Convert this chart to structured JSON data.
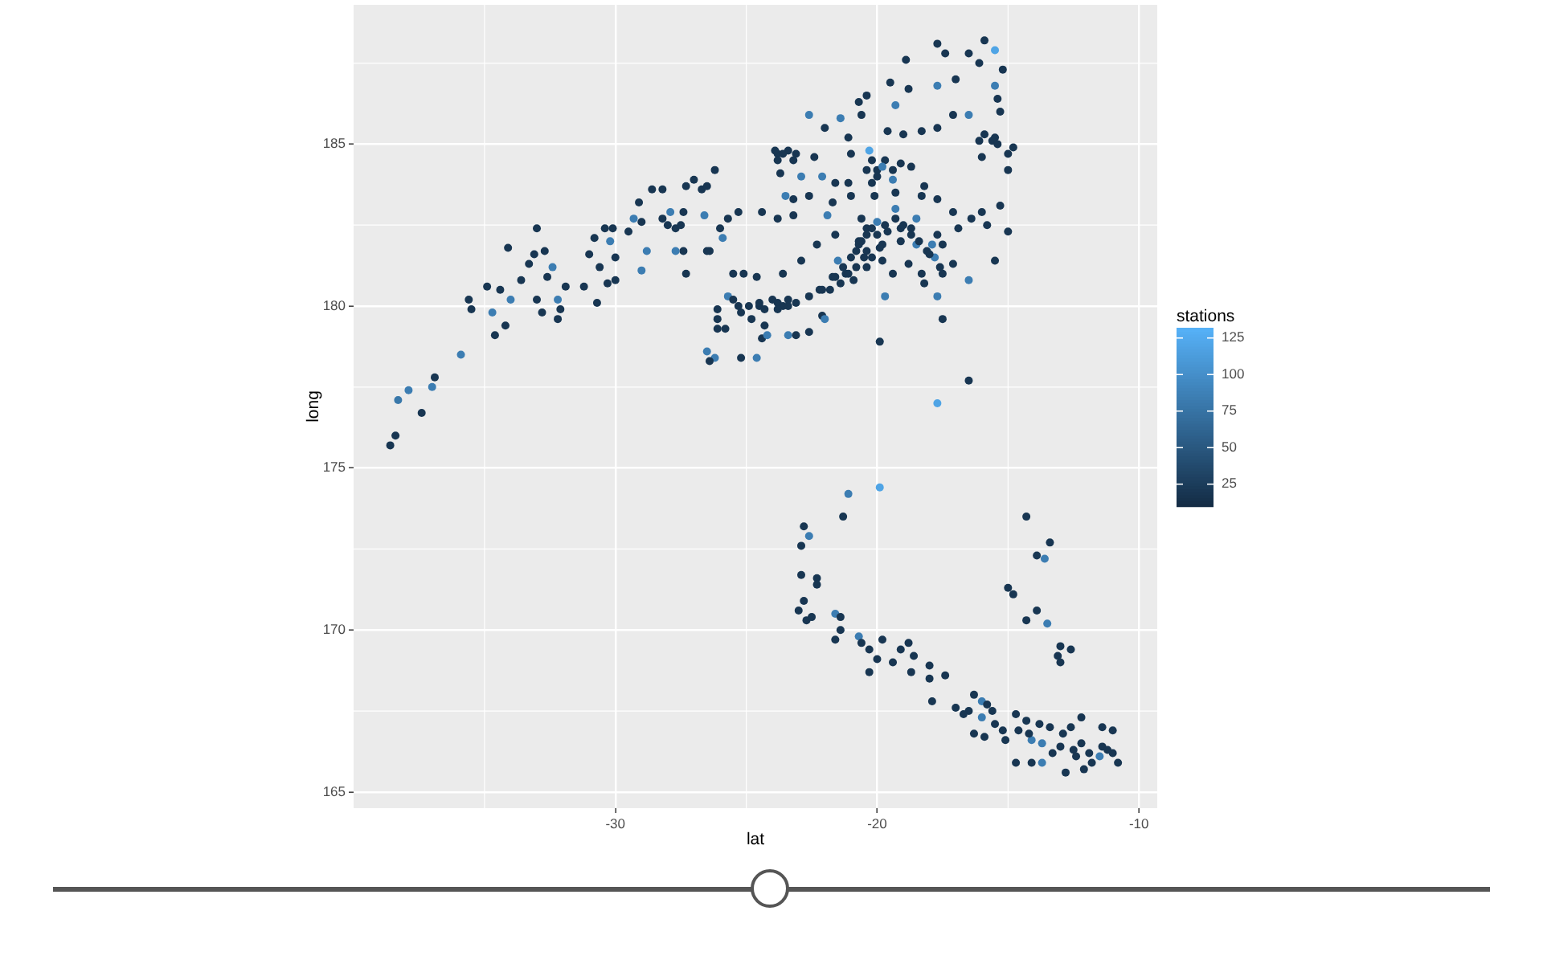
{
  "chart_data": {
    "type": "scatter",
    "xlabel": "lat",
    "ylabel": "long",
    "clabel": "stations",
    "x": [
      -38.6,
      -38.4,
      -38.3,
      -37.9,
      -37.4,
      -37.0,
      -36.9,
      -35.9,
      -35.6,
      -35.5,
      -34.9,
      -34.7,
      -34.6,
      -34.4,
      -34.2,
      -34.0,
      -34.1,
      -33.6,
      -33.3,
      -33.1,
      -33.0,
      -32.7,
      -32.6,
      -32.4,
      -33.0,
      -32.8,
      -32.2,
      -32.1,
      -32.2,
      -31.9,
      -31.2,
      -31.0,
      -30.7,
      -30.8,
      -30.4,
      -30.6,
      -30.2,
      -30.3,
      -30.0,
      -30.1,
      -30.0,
      -29.5,
      -29.3,
      -29.1,
      -29.0,
      -29.0,
      -28.8,
      -28.6,
      -28.2,
      -28.2,
      -27.9,
      -27.7,
      -27.5,
      -27.4,
      -27.3,
      -27.3,
      -27.0,
      -26.7,
      -26.6,
      -26.4,
      -26.2,
      -26.5,
      -26.2,
      -26.1,
      -26.1,
      -27.7,
      -27.4,
      -28.0,
      -26.4,
      -17.7,
      -17.4,
      -16.5,
      -15.9,
      -15.5,
      -18.9,
      -16.1,
      -15.2,
      -17.7,
      -17.0,
      -15.5,
      -15.4,
      -15.3,
      -19.5,
      -18.8,
      -20.4,
      -19.3,
      -20.7,
      -22.6,
      -21.4,
      -20.6,
      -17.1,
      -16.5,
      -17.7,
      -15.9,
      -15.5,
      -14.8,
      -15.0,
      -16.0,
      -15.0,
      -22.0,
      -21.1,
      -20.3,
      -19.6,
      -19.0,
      -18.3,
      -23.8,
      -23.4,
      -23.2,
      -22.4,
      -21.0,
      -20.0,
      -19.7,
      -18.7,
      -23.7,
      -22.9,
      -22.1,
      -21.6,
      -21.1,
      -20.2,
      -19.4,
      -19.3,
      -18.2,
      -17.7,
      -15.3,
      -22.6,
      -21.7,
      -23.2,
      -23.5,
      -21.0,
      -20.1,
      -18.3,
      -26.5,
      -25.3,
      -25.7,
      -24.4,
      -23.8,
      -23.2,
      -21.9,
      -20.6,
      -19.3,
      -18.5,
      -17.1,
      -16.4,
      -16.0,
      -15.8,
      -15.0,
      -26.0,
      -25.9,
      -26.5,
      -20.4,
      -20.0,
      -19.1,
      -18.7,
      -17.7,
      -16.9,
      -21.6,
      -22.3,
      -20.8,
      -20.2,
      -19.8,
      -18.5,
      -18.1,
      -17.5,
      -17.8,
      -17.5,
      -17.1,
      -15.5,
      -16.5,
      -21.5,
      -21.2,
      -21.7,
      -20.4,
      -19.8,
      -19.4,
      -19.7,
      -18.3,
      -18.2,
      -17.7,
      -18.8,
      -22.2,
      -22.6,
      -22.9,
      -25.5,
      -25.1,
      -24.6,
      -23.6,
      -25.7,
      -25.3,
      -24.5,
      -23.8,
      -23.4,
      -23.1,
      -26.1,
      -25.8,
      -24.8,
      -24.3,
      -24.4,
      -24.2,
      -23.4,
      -23.1,
      -22.6,
      -22.1,
      -22.0,
      -25.2,
      -24.6,
      -19.9,
      -17.5,
      -16.5,
      -17.7,
      -20.7,
      -19.6,
      -19.9,
      -21.0,
      -19.1,
      -19.9,
      -21.1,
      -21.3,
      -22.8,
      -22.6,
      -22.9,
      -22.9,
      -22.3,
      -22.3,
      -22.8,
      -23.0,
      -22.7,
      -22.5,
      -21.6,
      -21.4,
      -21.4,
      -21.6,
      -20.7,
      -20.6,
      -20.3,
      -20.0,
      -20.3,
      -19.8,
      -19.4,
      -19.1,
      -18.8,
      -18.6,
      -18.7,
      -18.0,
      -18.0,
      -17.4,
      -17.9,
      -17.0,
      -16.3,
      -16.0,
      -16.5,
      -16.3,
      -16.0,
      -15.6,
      -15.5,
      -15.9,
      -15.1,
      -14.7,
      -14.6,
      -14.3,
      -14.7,
      -14.1,
      -14.1,
      -13.8,
      -13.7,
      -13.7,
      -13.4,
      -13.3,
      -12.8,
      -12.9,
      -12.6,
      -12.5,
      -12.2,
      -12.2,
      -12.1,
      -11.9,
      -11.8,
      -11.5,
      -11.4,
      -11.4,
      -11.0,
      -11.0,
      -10.8,
      -14.3,
      -13.4,
      -13.9,
      -13.6,
      -15.0,
      -14.8,
      -14.3,
      -13.9,
      -13.5,
      -13.0,
      -12.6,
      -13.1,
      -13.0,
      -22.1,
      -21.6,
      -21.3,
      -20.7,
      -20.4,
      -20.2,
      -20.0,
      -19.7,
      -19.3,
      -19.0,
      -18.7,
      -18.4,
      -18.0,
      -17.6,
      -17.9,
      -21.1,
      -20.8,
      -20.5,
      -21.4,
      -21.8,
      -20.6,
      -20.4,
      -20.9,
      -20.2,
      -19.8,
      -19.4,
      -20.0,
      -19.1,
      -20.4,
      -23.9,
      -23.6,
      -23.1,
      -23.8,
      -25.5,
      -24.9,
      -24.5,
      -24.0,
      -23.6,
      -23.8,
      -25.2,
      -24.3,
      -23.4,
      -15.6,
      -16.1,
      -15.4,
      -15.2,
      -14.2,
      -13.0,
      -12.4,
      -11.2,
      -16.7,
      -15.8
    ],
    "values": [
      175.7,
      176.0,
      177.1,
      177.4,
      176.7,
      177.5,
      177.8,
      178.5,
      180.2,
      179.9,
      180.6,
      179.8,
      179.1,
      180.5,
      179.4,
      180.2,
      181.8,
      180.8,
      181.3,
      181.6,
      182.4,
      181.7,
      180.9,
      181.2,
      180.2,
      179.8,
      180.2,
      179.9,
      179.6,
      180.6,
      180.6,
      181.6,
      180.1,
      182.1,
      182.4,
      181.2,
      182.0,
      180.7,
      180.8,
      182.4,
      181.5,
      182.3,
      182.7,
      183.2,
      182.6,
      181.1,
      181.7,
      183.6,
      182.7,
      183.6,
      182.9,
      182.4,
      182.5,
      181.7,
      181.0,
      183.7,
      183.9,
      183.6,
      182.8,
      181.7,
      184.2,
      178.6,
      178.4,
      179.3,
      179.9,
      181.7,
      182.9,
      182.5,
      178.3,
      188.1,
      187.8,
      187.8,
      188.2,
      187.9,
      187.6,
      187.5,
      187.3,
      186.8,
      187.0,
      186.8,
      186.4,
      186.0,
      186.9,
      186.7,
      186.5,
      186.2,
      186.3,
      185.9,
      185.8,
      185.9,
      185.9,
      185.9,
      185.5,
      185.3,
      185.2,
      184.9,
      184.7,
      184.6,
      184.2,
      185.5,
      185.2,
      184.8,
      185.4,
      185.3,
      185.4,
      184.7,
      184.8,
      184.5,
      184.6,
      184.7,
      184.2,
      184.5,
      184.3,
      184.1,
      184.0,
      184.0,
      183.8,
      183.8,
      183.8,
      183.9,
      183.5,
      183.7,
      183.3,
      183.1,
      183.4,
      183.2,
      183.3,
      183.4,
      183.4,
      183.4,
      183.4,
      183.7,
      182.9,
      182.7,
      182.9,
      182.7,
      182.8,
      182.8,
      182.7,
      183.0,
      182.7,
      182.9,
      182.7,
      182.9,
      182.5,
      182.3,
      182.4,
      182.1,
      181.7,
      182.4,
      182.2,
      182.4,
      182.2,
      182.2,
      182.4,
      182.2,
      181.9,
      181.7,
      181.5,
      181.9,
      181.9,
      181.7,
      181.9,
      181.5,
      181.0,
      181.3,
      181.4,
      180.8,
      181.4,
      181.0,
      180.9,
      181.2,
      181.4,
      181.0,
      180.3,
      181.0,
      180.7,
      180.3,
      181.3,
      180.5,
      180.3,
      181.4,
      181.0,
      181.0,
      180.9,
      181.0,
      180.3,
      180.0,
      180.0,
      180.1,
      180.0,
      180.1,
      179.6,
      179.3,
      179.6,
      179.4,
      179.0,
      179.1,
      179.1,
      179.1,
      179.2,
      179.7,
      179.6,
      178.4,
      178.4,
      178.9,
      179.6,
      177.7,
      177.0,
      182.0,
      182.3,
      181.8,
      181.5,
      182.0,
      174.4,
      174.2,
      173.5,
      173.2,
      172.9,
      172.6,
      171.7,
      171.6,
      171.4,
      170.9,
      170.6,
      170.3,
      170.4,
      170.5,
      170.4,
      170.0,
      169.7,
      169.8,
      169.6,
      169.4,
      169.1,
      168.7,
      169.7,
      169.0,
      169.4,
      169.6,
      169.2,
      168.7,
      168.9,
      168.5,
      168.6,
      167.8,
      167.6,
      168.0,
      167.8,
      167.5,
      166.8,
      167.3,
      167.5,
      167.1,
      166.7,
      166.6,
      167.4,
      166.9,
      167.2,
      165.9,
      165.9,
      166.6,
      167.1,
      166.5,
      165.9,
      167.0,
      166.2,
      165.6,
      166.8,
      167.0,
      166.3,
      167.3,
      166.5,
      165.7,
      166.2,
      165.9,
      166.1,
      167.0,
      166.4,
      166.9,
      166.2,
      165.9,
      173.5,
      172.7,
      172.3,
      172.2,
      171.3,
      171.1,
      170.3,
      170.6,
      170.2,
      169.5,
      169.4,
      169.2,
      169.0,
      180.5,
      180.9,
      181.2,
      181.9,
      182.2,
      182.4,
      182.6,
      182.5,
      182.7,
      182.5,
      182.4,
      182.0,
      181.6,
      181.2,
      181.9,
      181.0,
      181.2,
      181.5,
      180.7,
      180.5,
      182.0,
      181.7,
      180.8,
      184.5,
      184.3,
      184.2,
      184.0,
      184.4,
      184.2,
      184.8,
      184.7,
      184.7,
      184.5,
      180.2,
      180.0,
      180.1,
      180.2,
      180.0,
      179.9,
      179.8,
      179.9,
      180.2,
      185.1,
      185.1,
      185.0,
      166.9,
      166.8,
      166.4,
      166.1,
      166.3,
      167.4,
      167.7
    ],
    "cvalues": [
      20,
      20,
      80,
      85,
      20,
      85,
      20,
      85,
      20,
      20,
      20,
      85,
      20,
      20,
      20,
      85,
      20,
      20,
      20,
      20,
      20,
      20,
      20,
      85,
      20,
      20,
      85,
      20,
      20,
      20,
      20,
      20,
      20,
      20,
      20,
      20,
      85,
      20,
      20,
      20,
      20,
      20,
      85,
      20,
      20,
      85,
      85,
      20,
      20,
      20,
      85,
      20,
      20,
      20,
      20,
      20,
      20,
      20,
      85,
      20,
      20,
      85,
      85,
      20,
      20,
      85,
      20,
      20,
      20,
      20,
      20,
      20,
      20,
      120,
      20,
      20,
      20,
      85,
      20,
      85,
      20,
      20,
      20,
      20,
      20,
      85,
      20,
      85,
      85,
      20,
      20,
      85,
      20,
      20,
      20,
      20,
      20,
      20,
      20,
      20,
      20,
      120,
      20,
      20,
      20,
      20,
      20,
      20,
      20,
      20,
      20,
      20,
      20,
      20,
      85,
      85,
      20,
      20,
      20,
      85,
      20,
      20,
      20,
      20,
      20,
      20,
      20,
      85,
      20,
      20,
      20,
      20,
      20,
      20,
      20,
      20,
      20,
      85,
      20,
      85,
      85,
      20,
      20,
      20,
      20,
      20,
      20,
      85,
      20,
      20,
      20,
      20,
      20,
      20,
      20,
      20,
      20,
      20,
      20,
      20,
      85,
      20,
      20,
      85,
      20,
      20,
      20,
      85,
      85,
      20,
      20,
      20,
      20,
      20,
      85,
      20,
      20,
      85,
      20,
      20,
      20,
      20,
      20,
      20,
      20,
      20,
      85,
      20,
      20,
      20,
      20,
      20,
      20,
      20,
      20,
      20,
      20,
      85,
      85,
      20,
      20,
      20,
      85,
      20,
      85,
      20,
      20,
      20,
      120,
      20,
      20,
      20,
      20,
      20,
      120,
      85,
      20,
      20,
      85,
      20,
      20,
      20,
      20,
      20,
      20,
      20,
      20,
      85,
      20,
      20,
      20,
      85,
      20,
      20,
      20,
      20,
      20,
      20,
      20,
      20,
      20,
      20,
      20,
      20,
      20,
      20,
      20,
      20,
      85,
      20,
      20,
      85,
      20,
      20,
      20,
      20,
      20,
      20,
      20,
      20,
      20,
      85,
      20,
      85,
      85,
      20,
      20,
      20,
      20,
      20,
      20,
      20,
      20,
      20,
      20,
      20,
      85,
      20,
      20,
      20,
      20,
      20,
      20,
      20,
      20,
      85,
      20,
      20,
      20,
      20,
      85,
      20,
      20,
      20,
      20,
      20,
      20,
      20,
      20,
      20,
      20,
      85,
      20,
      20,
      20,
      20,
      20,
      20,
      20,
      85,
      20,
      20,
      20,
      20,
      20,
      20,
      20,
      20,
      20,
      85,
      20,
      20,
      20,
      20,
      20,
      20,
      20,
      20,
      20,
      20,
      20,
      20,
      20,
      20,
      20,
      20,
      20,
      20,
      20,
      20,
      20,
      20,
      20,
      20,
      20,
      20,
      20
    ],
    "xlim": [
      -40,
      -9.3
    ],
    "ylim": [
      164.5,
      189.3
    ],
    "xticks": [
      -30,
      -20,
      -10
    ],
    "yticks": [
      165,
      170,
      175,
      180,
      185
    ],
    "clim": [
      10,
      132
    ],
    "cticks": [
      25,
      50,
      75,
      100,
      125
    ],
    "grid": true,
    "marker": "circle"
  }
}
